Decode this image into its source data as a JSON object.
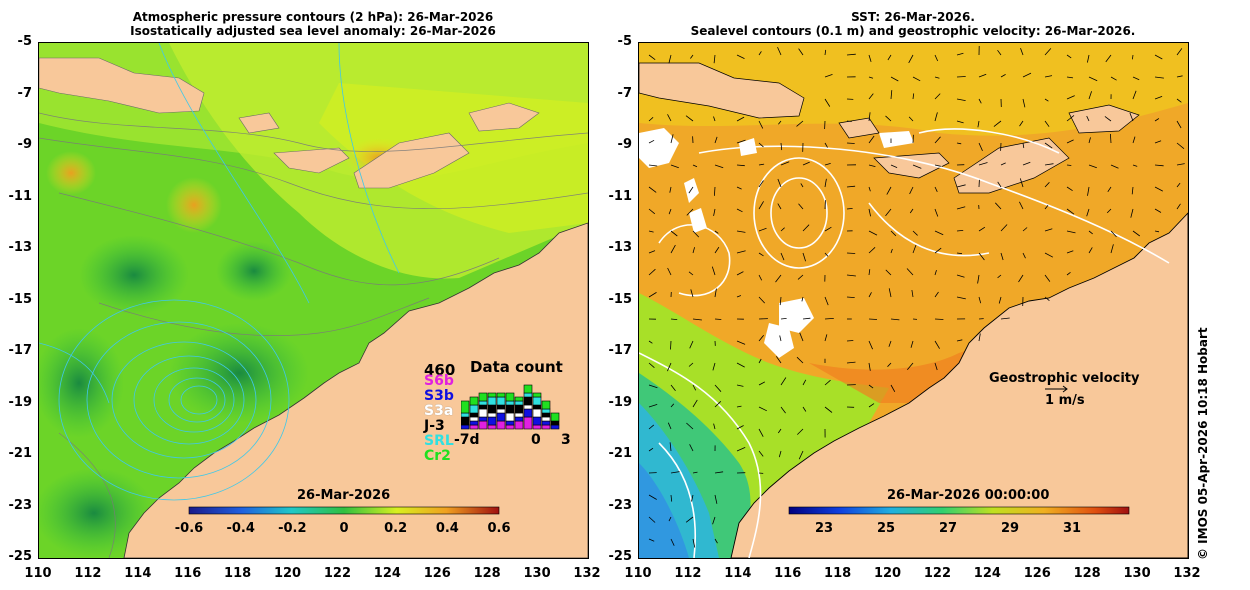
{
  "left_panel": {
    "title_line1": "Atmospheric pressure contours (2 hPa): 26-Mar-2026",
    "title_line2": "Isostatically adjusted sea level anomaly: 26-Mar-2026",
    "colorbar_label": "26-Mar-2026",
    "colorbar_ticks": [
      "-0.6",
      "-0.4",
      "-0.2",
      "0",
      "0.2",
      "0.4",
      "0.6"
    ],
    "data_count": {
      "title": "Data count",
      "max": "460",
      "sats": [
        "S6b",
        "S3b",
        "S3a",
        "J-3",
        "SRL",
        "Cr2"
      ],
      "sat_colors": [
        "#e020e0",
        "#1010e0",
        "#ffffff",
        "#000000",
        "#30e0e0",
        "#20e020"
      ],
      "axis_left": "-7d",
      "axis_mid": "0",
      "axis_right": "3"
    }
  },
  "right_panel": {
    "title_line1": "SST: 26-Mar-2026.",
    "title_line2": "Sealevel contours (0.1 m) and geostrophic velocity: 26-Mar-2026.",
    "colorbar_label": "26-Mar-2026 00:00:00",
    "colorbar_ticks": [
      "23",
      "25",
      "27",
      "29",
      "31"
    ],
    "legend_title": "Geostrophic velocity",
    "legend_speed": "1 m/s"
  },
  "y_ticks": [
    "-5",
    "-7",
    "-9",
    "-11",
    "-13",
    "-15",
    "-17",
    "-19",
    "-21",
    "-23",
    "-25"
  ],
  "x_ticks": [
    "110",
    "112",
    "114",
    "116",
    "118",
    "120",
    "122",
    "124",
    "126",
    "128",
    "130",
    "132"
  ],
  "credit": "© IMOS 05-Apr-2026 10:18 Hobart",
  "colors": {
    "land": "#f8c89a",
    "sla_base": "#8ee020",
    "sst_base": "#f0b020"
  }
}
